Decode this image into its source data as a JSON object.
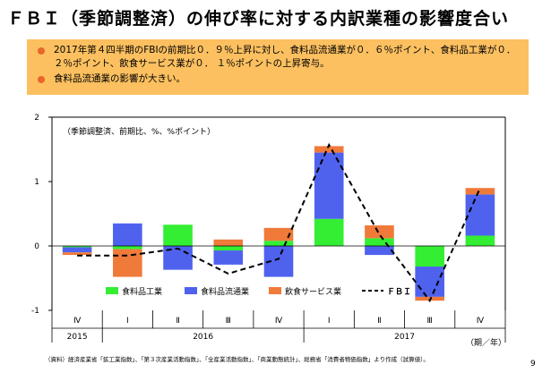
{
  "title": "ＦＢＩ（季節調整済）の伸び率に対する内訳業種の影響度合い",
  "summary": {
    "bullets": [
      "2017年第４四半期のFBIの前期比０．９％上昇に対し、食料品流通業が０．６％ポイント、食料品工業が０．２％ポイント、飲食サービス業が０． １％ポイントの上昇寄与。",
      "食料品流通業の影響が大きい。"
    ]
  },
  "source_note": "（資料）経済産業省「鉱工業指数」、「第３次産業活動指数」、「全産業活動指数」、「商業動態統計」、総務省「消費者物価指数」より作成（試算値）。",
  "page_number": "9",
  "chart_data": {
    "type": "bar",
    "stacked": true,
    "unit_note": "（季節調整済、前期比、%、%ポイント）",
    "x_unit_label": "（期／年）",
    "categories": [
      "Ⅳ",
      "Ⅰ",
      "Ⅱ",
      "Ⅲ",
      "Ⅳ",
      "Ⅰ",
      "Ⅱ",
      "Ⅲ",
      "Ⅳ"
    ],
    "year_groups": [
      {
        "label": "2015",
        "from": 0,
        "to": 0
      },
      {
        "label": "2016",
        "from": 1,
        "to": 4
      },
      {
        "label": "2017",
        "from": 5,
        "to": 8
      }
    ],
    "ylim": [
      -1,
      2
    ],
    "yticks": [
      -1,
      0,
      1,
      2
    ],
    "series": [
      {
        "name": "食料品工業",
        "color": "#33ee33",
        "values": [
          -0.02,
          -0.05,
          0.33,
          -0.07,
          0.08,
          0.42,
          0.12,
          -0.32,
          0.16
        ]
      },
      {
        "name": "食料品流通業",
        "color": "#4f62ee",
        "values": [
          -0.08,
          0.35,
          -0.37,
          -0.22,
          -0.48,
          1.03,
          -0.14,
          -0.47,
          0.64
        ]
      },
      {
        "name": "飲食サービス業",
        "color": "#ef7a3a",
        "values": [
          -0.04,
          -0.43,
          0.0,
          0.1,
          0.2,
          0.1,
          0.2,
          -0.06,
          0.1
        ]
      }
    ],
    "line": {
      "name": "ＦＢＩ",
      "color": "#000000",
      "values": [
        -0.15,
        -0.15,
        -0.04,
        -0.43,
        -0.2,
        1.57,
        0.18,
        -0.85,
        0.9
      ]
    },
    "legend_position": "bottom"
  }
}
